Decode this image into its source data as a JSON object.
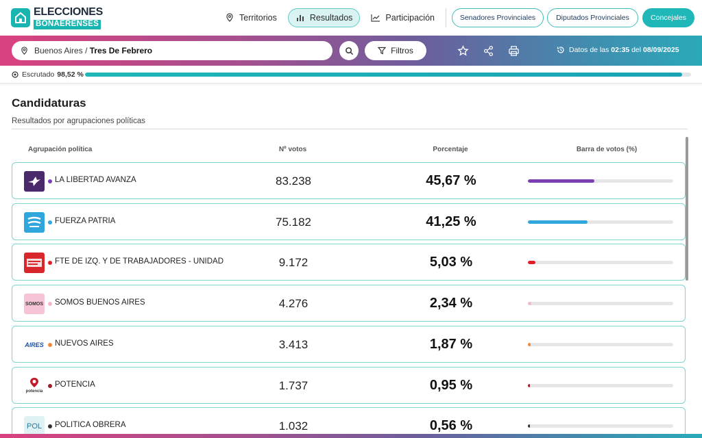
{
  "brand": {
    "line1": "ELECCIONES",
    "line2": "BONAERENSES"
  },
  "nav": [
    {
      "label": "Territorios",
      "icon": "map-pin-icon",
      "active": false
    },
    {
      "label": "Resultados",
      "icon": "bar-chart-icon",
      "active": true
    },
    {
      "label": "Participación",
      "icon": "line-chart-icon",
      "active": false
    }
  ],
  "categories": {
    "senadores": "Senadores Provinciales",
    "diputados": "Diputados Provinciales",
    "concejales": "Concejales"
  },
  "search": {
    "region": "Buenos Aires",
    "separator": "/",
    "city": "Tres De Febrero"
  },
  "filters_label": "Filtros",
  "datos": {
    "prefix": "Datos de las",
    "time": "02:35",
    "connector": "del",
    "date": "08/09/2025"
  },
  "escrutado": {
    "label": "Escrutado",
    "value": "98,52 %",
    "fraction": 0.9852
  },
  "section": {
    "title": "Candidaturas",
    "subtitle": "Resultados por agrupaciones políticas"
  },
  "table": {
    "headers": {
      "party": "Agrupación política",
      "votes": "Nº votos",
      "pct": "Porcentaje",
      "bar": "Barra de votos (%)"
    },
    "rows": [
      {
        "name": "LA LIBERTAD AVANZA",
        "votes": "83.238",
        "pct": "45,67 %",
        "fraction": 0.4567,
        "color": "#7a3fb0",
        "logo_bg": "#4b2a6b",
        "logo_text": ""
      },
      {
        "name": "FUERZA PATRIA",
        "votes": "75.182",
        "pct": "41,25 %",
        "fraction": 0.4125,
        "color": "#2fa6dc",
        "logo_bg": "#2fa6dc",
        "logo_text": ""
      },
      {
        "name": "FTE DE IZQ. Y DE TRABAJADORES - UNIDAD",
        "votes": "9.172",
        "pct": "5,03 %",
        "fraction": 0.0503,
        "color": "#e01e2b",
        "logo_bg": "#d8262c",
        "logo_text": ""
      },
      {
        "name": "SOMOS BUENOS AIRES",
        "votes": "4.276",
        "pct": "2,34 %",
        "fraction": 0.0234,
        "color": "#f2b6cc",
        "logo_bg": "#f6c4d6",
        "logo_text": "SOMOS"
      },
      {
        "name": "NUEVOS AIRES",
        "votes": "3.413",
        "pct": "1,87 %",
        "fraction": 0.0187,
        "color": "#f08a3a",
        "logo_bg": "#ffffff",
        "logo_text": "AIRES"
      },
      {
        "name": "POTENCIA",
        "votes": "1.737",
        "pct": "0,95 %",
        "fraction": 0.0095,
        "color": "#9a1f2a",
        "logo_bg": "#ffffff",
        "logo_text": "potencia"
      },
      {
        "name": "POLITICA OBRERA",
        "votes": "1.032",
        "pct": "0,56 %",
        "fraction": 0.0056,
        "color": "#333333",
        "logo_bg": "#dff1f3",
        "logo_text": "POL"
      }
    ]
  }
}
